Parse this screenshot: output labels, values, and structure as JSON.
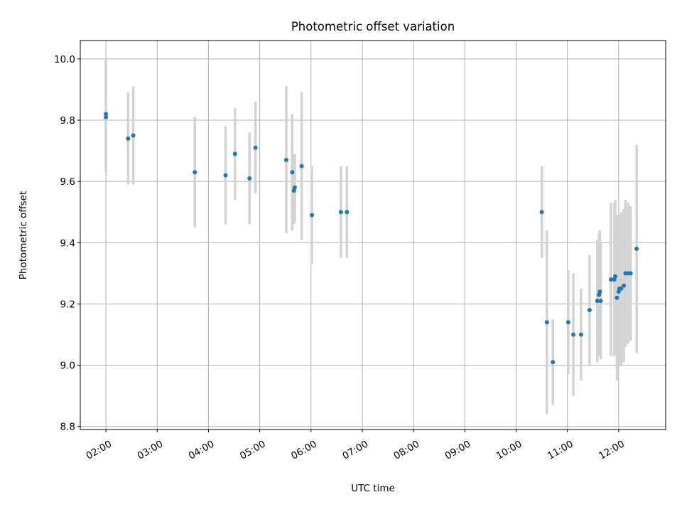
{
  "chart_data": {
    "type": "scatter",
    "title": "Photometric offset variation",
    "xlabel": "UTC time",
    "ylabel": "Photometric offset",
    "xlim": [
      "01:30",
      "12:55"
    ],
    "ylim": [
      8.79,
      10.06
    ],
    "grid": true,
    "x_ticks": [
      "02:00",
      "03:00",
      "04:00",
      "05:00",
      "06:00",
      "07:00",
      "08:00",
      "09:00",
      "10:00",
      "11:00",
      "12:00"
    ],
    "y_ticks": [
      8.8,
      9.0,
      9.2,
      9.4,
      9.6,
      9.8,
      10.0
    ],
    "series": [
      {
        "points": [
          {
            "x": "02:00",
            "y": 9.82,
            "err": 0.18
          },
          {
            "x": "02:00",
            "y": 9.81,
            "err": 0.18
          },
          {
            "x": "02:26",
            "y": 9.74,
            "err": 0.15
          },
          {
            "x": "02:32",
            "y": 9.75,
            "err": 0.16
          },
          {
            "x": "03:44",
            "y": 9.63,
            "err": 0.18
          },
          {
            "x": "04:20",
            "y": 9.62,
            "err": 0.16
          },
          {
            "x": "04:31",
            "y": 9.69,
            "err": 0.15
          },
          {
            "x": "04:48",
            "y": 9.61,
            "err": 0.15
          },
          {
            "x": "04:55",
            "y": 9.71,
            "err": 0.15
          },
          {
            "x": "05:31",
            "y": 9.67,
            "err": 0.24
          },
          {
            "x": "05:38",
            "y": 9.63,
            "err": 0.19
          },
          {
            "x": "05:40",
            "y": 9.57,
            "err": 0.11
          },
          {
            "x": "05:41",
            "y": 9.58,
            "err": 0.11
          },
          {
            "x": "05:49",
            "y": 9.65,
            "err": 0.24
          },
          {
            "x": "06:01",
            "y": 9.49,
            "err": 0.16
          },
          {
            "x": "06:35",
            "y": 9.5,
            "err": 0.15
          },
          {
            "x": "06:42",
            "y": 9.5,
            "err": 0.15
          },
          {
            "x": "10:30",
            "y": 9.5,
            "err": 0.15
          },
          {
            "x": "10:36",
            "y": 9.14,
            "err": 0.3
          },
          {
            "x": "10:43",
            "y": 9.01,
            "err": 0.14
          },
          {
            "x": "11:01",
            "y": 9.14,
            "err": 0.17
          },
          {
            "x": "11:07",
            "y": 9.1,
            "err": 0.2
          },
          {
            "x": "11:16",
            "y": 9.1,
            "err": 0.15
          },
          {
            "x": "11:26",
            "y": 9.18,
            "err": 0.18
          },
          {
            "x": "11:35",
            "y": 9.21,
            "err": 0.2
          },
          {
            "x": "11:37",
            "y": 9.23,
            "err": 0.2
          },
          {
            "x": "11:38",
            "y": 9.24,
            "err": 0.2
          },
          {
            "x": "11:39",
            "y": 9.21,
            "err": 0.19
          },
          {
            "x": "11:51",
            "y": 9.28,
            "err": 0.25
          },
          {
            "x": "11:55",
            "y": 9.28,
            "err": 0.25
          },
          {
            "x": "11:56",
            "y": 9.29,
            "err": 0.25
          },
          {
            "x": "11:58",
            "y": 9.22,
            "err": 0.27
          },
          {
            "x": "12:00",
            "y": 9.24,
            "err": 0.24
          },
          {
            "x": "12:01",
            "y": 9.25,
            "err": 0.24
          },
          {
            "x": "12:03",
            "y": 9.25,
            "err": 0.25
          },
          {
            "x": "12:06",
            "y": 9.26,
            "err": 0.25
          },
          {
            "x": "12:08",
            "y": 9.3,
            "err": 0.24
          },
          {
            "x": "12:11",
            "y": 9.3,
            "err": 0.23
          },
          {
            "x": "12:14",
            "y": 9.3,
            "err": 0.22
          },
          {
            "x": "12:21",
            "y": 9.38,
            "err": 0.34
          }
        ]
      }
    ],
    "colors": {
      "points": "#1f77b4",
      "errorbars": "#d3d3d3",
      "grid": "#b0b0b0"
    }
  }
}
